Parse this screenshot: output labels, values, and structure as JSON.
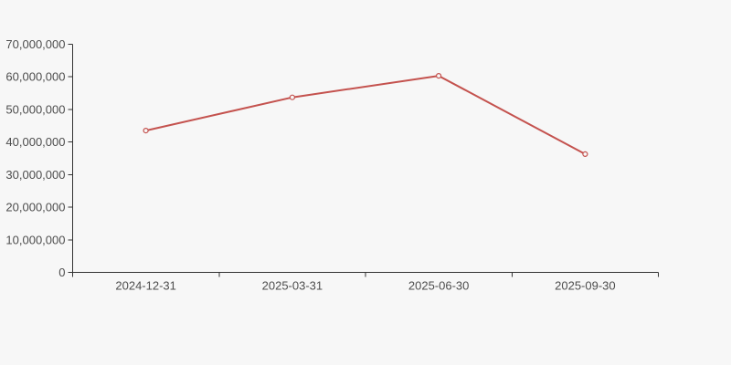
{
  "page": {
    "background_color": "#f7f7f7"
  },
  "chart_data": {
    "type": "line",
    "title": "",
    "xlabel": "",
    "ylabel": "",
    "categories": [
      "2024-12-31",
      "2025-03-31",
      "2025-06-30",
      "2025-09-30"
    ],
    "values": [
      43500000,
      53700000,
      60300000,
      36300000
    ],
    "ylim": [
      0,
      70000000
    ],
    "y_tick_interval": 10000000,
    "y_tick_labels": [
      "0",
      "10,000,000",
      "20,000,000",
      "30,000,000",
      "40,000,000",
      "50,000,000",
      "60,000,000",
      "70,000,000"
    ],
    "grid": false,
    "legend": false,
    "marker": "open-circle",
    "line_color": "#c4524e",
    "marker_fill": "#f7f7f7",
    "axis_color": "#333333",
    "label_color": "#4d4d4d"
  }
}
